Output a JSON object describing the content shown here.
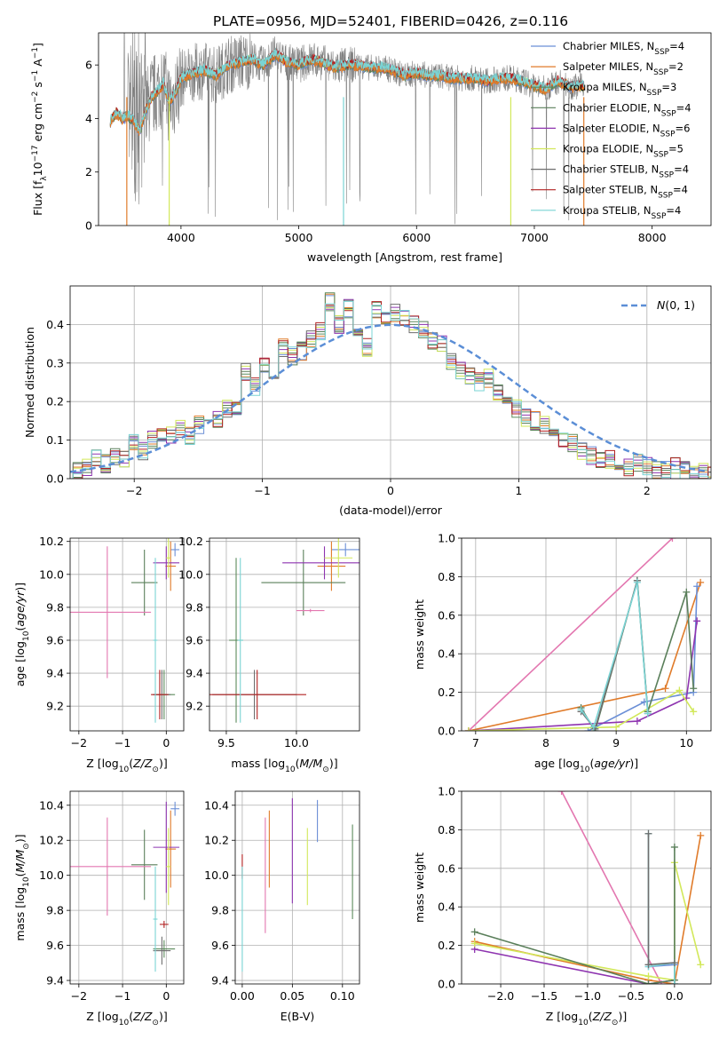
{
  "figure_title": "PLATE=0956, MJD=52401, FIBERID=0426, z=0.116",
  "series": [
    {
      "name": "Chabrier MILES",
      "nssp": "4",
      "color": "#6b8fd6"
    },
    {
      "name": "Salpeter MILES",
      "nssp": "2",
      "color": "#e07b2a"
    },
    {
      "name": "Kroupa MILES",
      "nssp": "3",
      "color": "#5d8b5d"
    },
    {
      "name": "Chabrier ELODIE",
      "nssp": "4",
      "color": "#5a7f5a"
    },
    {
      "name": "Salpeter ELODIE",
      "nssp": "6",
      "color": "#8e34b0"
    },
    {
      "name": "Kroupa ELODIE",
      "nssp": "5",
      "color": "#d2e85a"
    },
    {
      "name": "Chabrier STELIB",
      "nssp": "4",
      "color": "#6e6e6e"
    },
    {
      "name": "Salpeter STELIB",
      "nssp": "4",
      "color": "#b22222"
    },
    {
      "name": "Kroupa STELIB",
      "nssp": "4",
      "color": "#7ad4d4"
    }
  ],
  "chart_data": [
    {
      "id": "spectrum",
      "type": "line",
      "title": "PLATE=0956, MJD=52401, FIBERID=0426, z=0.116",
      "xlabel": "wavelength [Angstrom, rest frame]",
      "ylabel": "Flux [f_λ 10^-17 erg cm^-2 s^-1 A^-1]",
      "xlim": [
        3300,
        8500
      ],
      "ylim": [
        0,
        7.2
      ],
      "xticks": [
        4000,
        5000,
        6000,
        7000,
        8000
      ],
      "yticks": [
        0,
        2,
        4,
        6
      ],
      "grid": false,
      "legend_position": "right",
      "data_color": "#808080",
      "model_points": [
        {
          "x": 3400,
          "y": 3.9
        },
        {
          "x": 3450,
          "y": 4.2
        },
        {
          "x": 3500,
          "y": 4.0
        },
        {
          "x": 3550,
          "y": 4.1
        },
        {
          "x": 3600,
          "y": 3.9
        },
        {
          "x": 3650,
          "y": 3.5
        },
        {
          "x": 3700,
          "y": 4.3
        },
        {
          "x": 3750,
          "y": 4.8
        },
        {
          "x": 3800,
          "y": 5.0
        },
        {
          "x": 3850,
          "y": 5.3
        },
        {
          "x": 3900,
          "y": 4.6
        },
        {
          "x": 3950,
          "y": 4.9
        },
        {
          "x": 4000,
          "y": 5.5
        },
        {
          "x": 4100,
          "y": 5.7
        },
        {
          "x": 4200,
          "y": 5.8
        },
        {
          "x": 4300,
          "y": 5.6
        },
        {
          "x": 4400,
          "y": 6.0
        },
        {
          "x": 4500,
          "y": 6.1
        },
        {
          "x": 4600,
          "y": 6.2
        },
        {
          "x": 4700,
          "y": 6.0
        },
        {
          "x": 4800,
          "y": 6.4
        },
        {
          "x": 4900,
          "y": 6.1
        },
        {
          "x": 5000,
          "y": 6.0
        },
        {
          "x": 5100,
          "y": 6.2
        },
        {
          "x": 5200,
          "y": 6.1
        },
        {
          "x": 5300,
          "y": 5.9
        },
        {
          "x": 5400,
          "y": 6.0
        },
        {
          "x": 5500,
          "y": 6.0
        },
        {
          "x": 5600,
          "y": 5.9
        },
        {
          "x": 5700,
          "y": 5.9
        },
        {
          "x": 5800,
          "y": 5.8
        },
        {
          "x": 5900,
          "y": 5.6
        },
        {
          "x": 6000,
          "y": 5.7
        },
        {
          "x": 6100,
          "y": 5.6
        },
        {
          "x": 6200,
          "y": 5.6
        },
        {
          "x": 6300,
          "y": 5.5
        },
        {
          "x": 6400,
          "y": 5.5
        },
        {
          "x": 6500,
          "y": 5.5
        },
        {
          "x": 6600,
          "y": 5.4
        },
        {
          "x": 6700,
          "y": 5.5
        },
        {
          "x": 6800,
          "y": 5.5
        },
        {
          "x": 6900,
          "y": 5.4
        },
        {
          "x": 7000,
          "y": 5.2
        },
        {
          "x": 7100,
          "y": 5.1
        },
        {
          "x": 7200,
          "y": 5.4
        },
        {
          "x": 7300,
          "y": 5.2
        },
        {
          "x": 7400,
          "y": 5.2
        }
      ]
    },
    {
      "id": "residuals",
      "type": "line",
      "xlabel": "(data-model)/error",
      "ylabel": "Normed distribution",
      "xlim": [
        -2.5,
        2.5
      ],
      "ylim": [
        0,
        0.5
      ],
      "xticks": [
        -2,
        -1,
        0,
        1,
        2
      ],
      "yticks": [
        0.0,
        0.1,
        0.2,
        0.3,
        0.4
      ],
      "grid": true,
      "legend_position": "top-right",
      "reference_curve": {
        "name": "N(0, 1)",
        "color": "#5b8ed6",
        "style": "dashed"
      },
      "histogram_bin_width": 0.1,
      "histogram_values": [
        0.01,
        0.02,
        0.03,
        0.05,
        0.04,
        0.06,
        0.05,
        0.09,
        0.07,
        0.1,
        0.12,
        0.11,
        0.13,
        0.11,
        0.14,
        0.13,
        0.15,
        0.18,
        0.19,
        0.28,
        0.24,
        0.3,
        0.25,
        0.34,
        0.32,
        0.33,
        0.36,
        0.38,
        0.46,
        0.4,
        0.44,
        0.38,
        0.34,
        0.44,
        0.41,
        0.43,
        0.42,
        0.4,
        0.39,
        0.36,
        0.35,
        0.3,
        0.28,
        0.27,
        0.25,
        0.26,
        0.22,
        0.2,
        0.18,
        0.16,
        0.15,
        0.14,
        0.12,
        0.1,
        0.09,
        0.07,
        0.06,
        0.05,
        0.05,
        0.04,
        0.03,
        0.04,
        0.03,
        0.02,
        0.02,
        0.03,
        0.02,
        0.01,
        0.02,
        0.01
      ]
    },
    {
      "id": "z-age",
      "type": "scatter",
      "xlabel": "Z [log10(Z/Z☉)]",
      "ylabel": "age [log10(age/yr)]",
      "xlim": [
        -2.2,
        0.4
      ],
      "ylim": [
        9.05,
        10.22
      ],
      "xticks": [
        -2,
        -1,
        0
      ],
      "yticks": [
        9.2,
        9.4,
        9.6,
        9.8,
        10.0,
        10.2
      ],
      "grid": true,
      "points": [
        {
          "series": 0,
          "x": 0.2,
          "y": 10.15,
          "xerr": 0.1,
          "yerr": 0.04
        },
        {
          "series": 1,
          "x": 0.1,
          "y": 10.05,
          "xerr": 0.12,
          "yerr": 0.15
        },
        {
          "series": 2,
          "x": -0.05,
          "y": 9.27,
          "xerr": 0.25,
          "yerr": 0.15
        },
        {
          "series": 3,
          "x": -0.5,
          "y": 9.95,
          "xerr": 0.3,
          "yerr": 0.2
        },
        {
          "series": 4,
          "x": 0.0,
          "y": 10.07,
          "xerr": 0.3,
          "yerr": 0.1
        },
        {
          "series": 5,
          "x": 0.05,
          "y": 10.1,
          "xerr": 0.05,
          "yerr": 0.12
        },
        {
          "series": 6,
          "x": -0.1,
          "y": 9.27,
          "xerr": 0.2,
          "yerr": 0.15
        },
        {
          "series": 7,
          "x": -0.15,
          "y": 9.27,
          "xerr": 0.2,
          "yerr": 0.15
        },
        {
          "series": 8,
          "x": -0.25,
          "y": 9.6,
          "xerr": 0.05,
          "yerr": 0.5
        },
        {
          "series": 9,
          "x": -1.35,
          "y": 9.77,
          "xerr": 1.0,
          "yerr": 0.4
        }
      ]
    },
    {
      "id": "mass-age",
      "type": "scatter",
      "xlabel": "mass [log10(M/M☉)]",
      "ylabel": "",
      "xlim": [
        9.38,
        10.45
      ],
      "ylim": [
        9.05,
        10.22
      ],
      "xticks": [
        9.5,
        10.0
      ],
      "yticks": [
        9.2,
        9.4,
        9.6,
        9.8,
        10.0,
        10.2
      ],
      "grid": true,
      "points": [
        {
          "series": 0,
          "x": 10.35,
          "y": 10.15,
          "xerr": 0.1,
          "yerr": 0.04
        },
        {
          "series": 1,
          "x": 10.25,
          "y": 10.05,
          "xerr": 0.1,
          "yerr": 0.15
        },
        {
          "series": 2,
          "x": 9.57,
          "y": 9.6,
          "xerr": 0.05,
          "yerr": 0.5
        },
        {
          "series": 3,
          "x": 10.05,
          "y": 9.95,
          "xerr": 0.3,
          "yerr": 0.2
        },
        {
          "series": 4,
          "x": 10.2,
          "y": 10.07,
          "xerr": 0.3,
          "yerr": 0.1
        },
        {
          "series": 5,
          "x": 10.3,
          "y": 10.1,
          "xerr": 0.1,
          "yerr": 0.12
        },
        {
          "series": 6,
          "x": 9.7,
          "y": 9.27,
          "xerr": 0.3,
          "yerr": 0.15
        },
        {
          "series": 7,
          "x": 9.72,
          "y": 9.27,
          "xerr": 0.35,
          "yerr": 0.15
        },
        {
          "series": 8,
          "x": 9.6,
          "y": 9.6,
          "xerr": 0.02,
          "yerr": 0.5
        },
        {
          "series": 9,
          "x": 10.1,
          "y": 9.78,
          "xerr": 0.1,
          "yerr": 0.01
        }
      ]
    },
    {
      "id": "age-weight",
      "type": "line",
      "xlabel": "age [log10(age/yr)]",
      "ylabel": "mass weight",
      "xlim": [
        6.8,
        10.35
      ],
      "ylim": [
        0,
        1.0
      ],
      "xticks": [
        7,
        8,
        9,
        10
      ],
      "yticks": [
        0.0,
        0.2,
        0.4,
        0.6,
        0.8,
        1.0
      ],
      "grid": true,
      "lines": [
        {
          "series": 9,
          "x": [
            6.9,
            9.8
          ],
          "y": [
            0.0,
            1.0
          ]
        },
        {
          "series": 1,
          "x": [
            6.9,
            9.7,
            10.2
          ],
          "y": [
            0.0,
            0.22,
            0.77
          ]
        },
        {
          "series": 0,
          "x": [
            8.6,
            9.4,
            10.1,
            10.15
          ],
          "y": [
            0.0,
            0.15,
            0.2,
            0.75
          ]
        },
        {
          "series": 4,
          "x": [
            6.9,
            9.3,
            10.0,
            10.15
          ],
          "y": [
            0.0,
            0.05,
            0.17,
            0.57
          ]
        },
        {
          "series": 5,
          "x": [
            6.9,
            9.0,
            9.9,
            10.1
          ],
          "y": [
            0.0,
            0.02,
            0.21,
            0.1
          ]
        },
        {
          "series": 3,
          "x": [
            8.5,
            8.7,
            9.3,
            9.45,
            10.0,
            10.1
          ],
          "y": [
            0.12,
            0.0,
            0.78,
            0.1,
            0.72,
            0.22
          ]
        },
        {
          "series": 6,
          "x": [
            8.5,
            8.7,
            9.3,
            9.45
          ],
          "y": [
            0.1,
            0.01,
            0.78,
            0.09
          ]
        },
        {
          "series": 8,
          "x": [
            8.5,
            8.68,
            9.3,
            9.45
          ],
          "y": [
            0.11,
            0.02,
            0.77,
            0.09
          ]
        }
      ]
    },
    {
      "id": "z-mass",
      "type": "scatter",
      "xlabel": "Z [log10(Z/Z☉)]",
      "ylabel": "mass [log10(M/M☉)]",
      "xlim": [
        -2.2,
        0.4
      ],
      "ylim": [
        9.38,
        10.48
      ],
      "xticks": [
        -2,
        -1,
        0
      ],
      "yticks": [
        9.4,
        9.6,
        9.8,
        10.0,
        10.2,
        10.4
      ],
      "grid": true,
      "points": [
        {
          "series": 0,
          "x": 0.2,
          "y": 10.38,
          "xerr": 0.1,
          "yerr": 0.04
        },
        {
          "series": 1,
          "x": 0.1,
          "y": 10.15,
          "xerr": 0.12,
          "yerr": 0.22
        },
        {
          "series": 2,
          "x": -0.05,
          "y": 9.58,
          "xerr": 0.25,
          "yerr": 0.05
        },
        {
          "series": 3,
          "x": -0.5,
          "y": 10.06,
          "xerr": 0.3,
          "yerr": 0.2
        },
        {
          "series": 4,
          "x": 0.0,
          "y": 10.16,
          "xerr": 0.3,
          "yerr": 0.26
        },
        {
          "series": 5,
          "x": 0.05,
          "y": 10.05,
          "xerr": 0.05,
          "yerr": 0.22
        },
        {
          "series": 6,
          "x": -0.1,
          "y": 9.57,
          "xerr": 0.2,
          "yerr": 0.08
        },
        {
          "series": 7,
          "x": -0.05,
          "y": 9.72,
          "xerr": 0.1,
          "yerr": 0.02
        },
        {
          "series": 8,
          "x": -0.25,
          "y": 9.75,
          "xerr": 0.05,
          "yerr": 0.3
        },
        {
          "series": 9,
          "x": -1.35,
          "y": 10.05,
          "xerr": 1.0,
          "yerr": 0.28
        }
      ]
    },
    {
      "id": "ebv-mass",
      "type": "scatter",
      "xlabel": "E(B-V)",
      "ylabel": "",
      "xlim": [
        -0.007,
        0.117
      ],
      "ylim": [
        9.38,
        10.48
      ],
      "xticks": [
        0.0,
        0.05,
        0.1
      ],
      "yticks": [
        9.4,
        9.6,
        9.8,
        10.0,
        10.2,
        10.4
      ],
      "grid": true,
      "points": [
        {
          "series": 0,
          "x": 0.075,
          "y": 10.31,
          "xerr": 0,
          "yerr": 0.12
        },
        {
          "series": 1,
          "x": 0.027,
          "y": 10.15,
          "xerr": 0,
          "yerr": 0.22
        },
        {
          "series": 2,
          "x": 0.11,
          "y": 10.02,
          "xerr": 0,
          "yerr": 0.27
        },
        {
          "series": 4,
          "x": 0.05,
          "y": 10.14,
          "xerr": 0,
          "yerr": 0.3
        },
        {
          "series": 5,
          "x": 0.065,
          "y": 10.05,
          "xerr": 0,
          "yerr": 0.22
        },
        {
          "series": 7,
          "x": 0.0,
          "y": 10.05,
          "xerr": 0,
          "yerr": 0.07
        },
        {
          "series": 8,
          "x": 0.0,
          "y": 9.75,
          "xerr": 0,
          "yerr": 0.3
        },
        {
          "series": 9,
          "x": 0.023,
          "y": 10.0,
          "xerr": 0,
          "yerr": 0.33
        }
      ]
    },
    {
      "id": "z-weight",
      "type": "line",
      "xlabel": "Z [log10(Z/Z☉)]",
      "ylabel": "mass weight",
      "xlim": [
        -2.45,
        0.42
      ],
      "ylim": [
        0,
        1.0
      ],
      "xticks": [
        -2.0,
        -1.5,
        -1.0,
        -0.5,
        0.0
      ],
      "yticks": [
        0.0,
        0.2,
        0.4,
        0.6,
        0.8,
        1.0
      ],
      "grid": true,
      "lines": [
        {
          "series": 9,
          "x": [
            -1.3,
            -0.15
          ],
          "y": [
            1.0,
            0.0
          ]
        },
        {
          "series": 1,
          "x": [
            -2.3,
            -0.3,
            0.0,
            0.3
          ],
          "y": [
            0.22,
            0.02,
            0.0,
            0.77
          ]
        },
        {
          "series": 0,
          "x": [
            -0.3,
            0.0,
            0.0
          ],
          "y": [
            0.09,
            0.1,
            0.0
          ]
        },
        {
          "series": 4,
          "x": [
            -2.3,
            -0.3,
            0.0
          ],
          "y": [
            0.18,
            0.0,
            0.02
          ]
        },
        {
          "series": 5,
          "x": [
            -2.3,
            -0.3,
            0.0,
            0.0,
            0.3
          ],
          "y": [
            0.21,
            0.04,
            0.02,
            0.63,
            0.1
          ]
        },
        {
          "series": 3,
          "x": [
            -2.3,
            -0.3,
            0.0,
            0.0
          ],
          "y": [
            0.27,
            0.0,
            0.02,
            0.71
          ]
        },
        {
          "series": 8,
          "x": [
            -0.3,
            -0.3,
            0.0,
            0.0
          ],
          "y": [
            0.78,
            0.09,
            0.11,
            0.0
          ]
        },
        {
          "series": 6,
          "x": [
            -0.3,
            -0.3,
            0.0
          ],
          "y": [
            0.78,
            0.1,
            0.11
          ]
        }
      ]
    }
  ]
}
